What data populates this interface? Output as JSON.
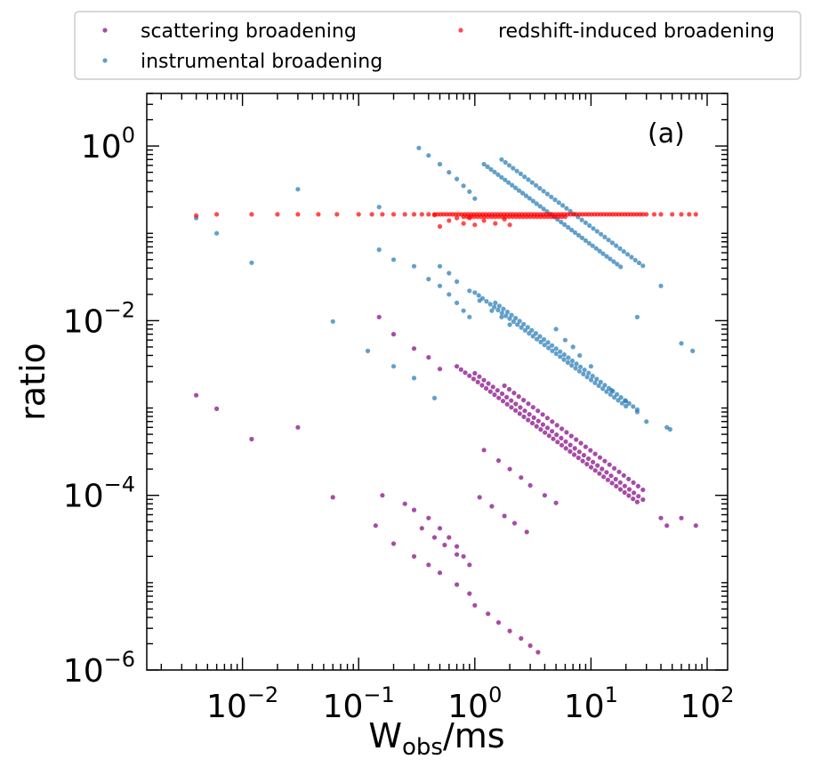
{
  "chart_data": {
    "type": "scatter",
    "title": "",
    "panel_label": "(a)",
    "xlabel": {
      "base": "W",
      "sub": "obs",
      "suffix": "/ms"
    },
    "ylabel": "ratio",
    "xscale": "log",
    "yscale": "log",
    "xlim": [
      0.0015,
      150
    ],
    "ylim": [
      1e-06,
      4
    ],
    "x_ticks": [
      {
        "value": 0.01,
        "base": "10",
        "exp": "−2"
      },
      {
        "value": 0.1,
        "base": "10",
        "exp": "−1"
      },
      {
        "value": 1,
        "base": "10",
        "exp": "0"
      },
      {
        "value": 10,
        "base": "10",
        "exp": "1"
      },
      {
        "value": 100,
        "base": "10",
        "exp": "2"
      }
    ],
    "y_ticks": [
      {
        "value": 1e-06,
        "base": "10",
        "exp": "−6"
      },
      {
        "value": 0.0001,
        "base": "10",
        "exp": "−4"
      },
      {
        "value": 0.01,
        "base": "10",
        "exp": "−2"
      },
      {
        "value": 1,
        "base": "10",
        "exp": "0"
      }
    ],
    "legend": {
      "placement": "top (outside, 2 columns)"
    },
    "series": [
      {
        "name": "scattering broadening",
        "color": "#800080",
        "points": [
          [
            0.004,
            0.0014
          ],
          [
            0.006,
            0.00098
          ],
          [
            0.012,
            0.00044
          ],
          [
            0.03,
            0.0006
          ],
          [
            0.06,
            9.5e-05
          ],
          [
            0.15,
            0.011
          ],
          [
            0.2,
            0.007
          ],
          [
            0.3,
            0.0048
          ],
          [
            0.4,
            0.0038
          ],
          [
            0.5,
            0.0028
          ],
          [
            0.14,
            4.5e-05
          ],
          [
            0.16,
            0.0001
          ],
          [
            0.25,
            8e-05
          ],
          [
            0.3,
            6.8e-05
          ],
          [
            0.4,
            5.5e-05
          ],
          [
            0.5,
            4.2e-05
          ],
          [
            0.6,
            3.3e-05
          ],
          [
            0.7,
            2.6e-05
          ],
          [
            0.8,
            2e-05
          ],
          [
            0.2,
            2.8e-05
          ],
          [
            0.3,
            2e-05
          ],
          [
            0.4,
            1.6e-05
          ],
          [
            0.5,
            1.3e-05
          ],
          [
            0.7,
            9.5e-06
          ],
          [
            0.9,
            7.5e-06
          ],
          [
            0.35,
            4.2e-05
          ],
          [
            0.45,
            3.3e-05
          ],
          [
            0.55,
            2.7e-05
          ],
          [
            0.7,
            2.1e-05
          ],
          [
            0.9,
            1.6e-05
          ],
          [
            1.0,
            5.5e-06
          ],
          [
            1.3,
            4.4e-06
          ],
          [
            1.6,
            3.5e-06
          ],
          [
            2.0,
            2.8e-06
          ],
          [
            2.5,
            2.3e-06
          ],
          [
            3.0,
            1.9e-06
          ],
          [
            3.5,
            1.6e-06
          ],
          [
            1.2,
            0.00033
          ],
          [
            1.6,
            0.00025
          ],
          [
            2.0,
            0.0002
          ],
          [
            2.5,
            0.00016
          ],
          [
            3.0,
            0.00013
          ],
          [
            4.0,
            0.0001
          ],
          [
            5.0,
            8.2e-05
          ],
          [
            1.1,
            9.5e-05
          ],
          [
            1.4,
            7.5e-05
          ],
          [
            1.8,
            5.8e-05
          ],
          [
            2.2,
            4.8e-05
          ],
          [
            2.8,
            3.8e-05
          ],
          [
            40,
            5.5e-05
          ],
          [
            45,
            4.5e-05
          ],
          [
            60,
            5.5e-05
          ],
          [
            80,
            4.5e-05
          ]
        ],
        "bands": [
          {
            "x0": 0.7,
            "x1": 25,
            "y0": 0.003,
            "n": 44
          },
          {
            "x0": 1.0,
            "x1": 28,
            "y0": 0.0025,
            "n": 38
          },
          {
            "x0": 1.8,
            "x1": 28,
            "y0": 0.0018,
            "n": 30
          }
        ]
      },
      {
        "name": "instrumental broadening",
        "color": "#1f77b4",
        "points": [
          [
            0.004,
            0.15
          ],
          [
            0.006,
            0.1
          ],
          [
            0.012,
            0.046
          ],
          [
            0.03,
            0.32
          ],
          [
            0.06,
            0.0098
          ],
          [
            0.12,
            0.0045
          ],
          [
            0.15,
            0.065
          ],
          [
            0.15,
            0.2
          ],
          [
            0.2,
            0.003
          ],
          [
            0.3,
            0.0022
          ],
          [
            0.45,
            0.0013
          ],
          [
            0.2,
            0.05
          ],
          [
            0.3,
            0.042
          ],
          [
            0.4,
            0.03
          ],
          [
            0.5,
            0.025
          ],
          [
            0.6,
            0.02
          ],
          [
            0.7,
            0.016
          ],
          [
            0.8,
            0.013
          ],
          [
            0.9,
            0.011
          ],
          [
            0.33,
            0.95
          ],
          [
            0.4,
            0.78
          ],
          [
            0.5,
            0.62
          ],
          [
            0.6,
            0.5
          ],
          [
            0.7,
            0.42
          ],
          [
            0.8,
            0.35
          ],
          [
            0.9,
            0.3
          ],
          [
            1.0,
            0.25
          ],
          [
            0.5,
            0.042
          ],
          [
            0.6,
            0.035
          ],
          [
            0.7,
            0.028
          ],
          [
            0.9,
            0.022
          ],
          [
            1.1,
            0.017
          ],
          [
            1.4,
            0.013
          ],
          [
            1.7,
            0.011
          ],
          [
            2.0,
            0.009
          ],
          [
            5,
            0.008
          ],
          [
            6,
            0.006
          ],
          [
            7,
            0.005
          ],
          [
            8,
            0.004
          ],
          [
            10,
            0.003
          ],
          [
            15,
            0.0016
          ],
          [
            20,
            0.0012
          ],
          [
            25,
            0.0009
          ],
          [
            30,
            0.0007
          ],
          [
            45,
            0.0006
          ],
          [
            48,
            0.00057
          ],
          [
            25,
            0.011
          ],
          [
            40,
            0.025
          ],
          [
            60,
            0.0055
          ],
          [
            75,
            0.0045
          ]
        ],
        "bands": [
          {
            "x0": 1.2,
            "x1": 18,
            "y0": 0.62,
            "n": 40
          },
          {
            "x0": 1.7,
            "x1": 28,
            "y0": 0.7,
            "n": 38
          },
          {
            "x0": 1.0,
            "x1": 20,
            "y0": 0.021,
            "n": 40
          },
          {
            "x0": 1.5,
            "x1": 25,
            "y0": 0.016,
            "n": 36
          }
        ]
      },
      {
        "name": "redshift-induced broadening",
        "color": "#ff0000",
        "points": [
          [
            0.004,
            0.16
          ],
          [
            0.006,
            0.165
          ],
          [
            0.012,
            0.165
          ],
          [
            0.02,
            0.165
          ],
          [
            0.03,
            0.165
          ],
          [
            0.045,
            0.165
          ],
          [
            0.065,
            0.165
          ],
          [
            0.1,
            0.165
          ],
          [
            0.13,
            0.165
          ],
          [
            0.16,
            0.165
          ],
          [
            0.2,
            0.165
          ],
          [
            0.25,
            0.165
          ],
          [
            0.3,
            0.165
          ],
          [
            0.35,
            0.165
          ],
          [
            0.4,
            0.165
          ],
          [
            0.45,
            0.162
          ],
          [
            0.5,
            0.12
          ],
          [
            0.6,
            0.14
          ],
          [
            0.7,
            0.15
          ],
          [
            0.8,
            0.13
          ],
          [
            0.9,
            0.15
          ],
          [
            1.0,
            0.125
          ],
          [
            1.2,
            0.14
          ],
          [
            1.5,
            0.13
          ],
          [
            1.8,
            0.145
          ],
          [
            2.0,
            0.125
          ],
          [
            30,
            0.165
          ],
          [
            35,
            0.165
          ],
          [
            40,
            0.165
          ],
          [
            50,
            0.165
          ],
          [
            60,
            0.165
          ],
          [
            70,
            0.165
          ],
          [
            80,
            0.165
          ]
        ],
        "bands": [
          {
            "x0": 0.45,
            "x1": 28,
            "y0": 0.165,
            "slope": 0,
            "n": 70
          },
          {
            "x0": 0.8,
            "x1": 6,
            "y0": 0.155,
            "slope": 0,
            "n": 30
          }
        ]
      }
    ]
  }
}
